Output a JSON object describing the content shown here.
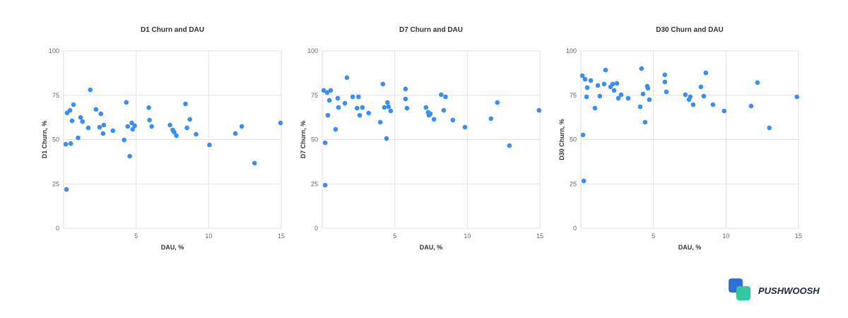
{
  "chart_data": [
    {
      "type": "scatter",
      "title": "D1 Churn and DAU",
      "x_label": "DAU, %",
      "y_label": "D1 Churn, %",
      "color": "#3a8ef2",
      "xlim": [
        0,
        15
      ],
      "xticks": [
        5,
        10,
        15
      ],
      "ylim": [
        0,
        100
      ],
      "yticks": [
        0,
        25,
        50,
        75,
        100
      ],
      "grid": true,
      "x": [
        0.15,
        0.2,
        0.24,
        0.44,
        0.49,
        0.58,
        0.68,
        1.0,
        1.17,
        1.3,
        1.7,
        1.84,
        2.23,
        2.48,
        2.57,
        2.77,
        2.72,
        3.4,
        4.17,
        4.32,
        4.42,
        4.56,
        4.7,
        4.76,
        4.9,
        5.87,
        5.92,
        6.07,
        7.33,
        7.52,
        7.62,
        7.77,
        8.4,
        8.5,
        8.7,
        9.13,
        10.05,
        11.84,
        12.28,
        13.16,
        14.95
      ],
      "values": [
        47.4,
        21.9,
        65,
        66.5,
        47.8,
        60.6,
        69.7,
        51,
        62.5,
        60.2,
        56.6,
        78,
        67,
        57,
        64.5,
        58.2,
        53.4,
        55,
        49.8,
        71,
        57.4,
        40.6,
        59.4,
        55.8,
        57.8,
        68,
        61,
        57.4,
        58.2,
        55.4,
        54.2,
        52.2,
        70.1,
        56.6,
        61.4,
        53,
        47,
        53.4,
        57.4,
        36.7,
        59.4
      ]
    },
    {
      "type": "scatter",
      "title": "D7 Churn and DAU",
      "x_label": "DAU, %",
      "y_label": "D7 Churn, %",
      "color": "#3a8ef2",
      "xlim": [
        0,
        15
      ],
      "xticks": [
        5,
        10,
        15
      ],
      "ylim": [
        0,
        100
      ],
      "yticks": [
        0,
        25,
        50,
        75,
        100
      ],
      "grid": true,
      "x": [
        0.1,
        0.2,
        0.2,
        0.34,
        0.39,
        0.49,
        0.58,
        0.92,
        1.12,
        1.07,
        1.56,
        1.7,
        2.1,
        2.4,
        2.5,
        2.58,
        2.77,
        3.2,
        4.0,
        4.18,
        4.28,
        4.43,
        4.5,
        4.57,
        4.72,
        5.74,
        5.74,
        5.84,
        7.15,
        7.3,
        7.35,
        7.45,
        7.7,
        8.2,
        8.37,
        8.5,
        9.0,
        9.83,
        11.63,
        12.07,
        12.9,
        14.94
      ],
      "values": [
        77.7,
        48.2,
        24.3,
        76.5,
        63.7,
        72.1,
        77.7,
        55.8,
        68.1,
        73.3,
        70.5,
        84.9,
        74.1,
        67.7,
        74.1,
        63.7,
        68.1,
        64.9,
        59.8,
        81.3,
        68.1,
        50.6,
        70.9,
        68.5,
        66.1,
        78.5,
        72.9,
        67.7,
        68.1,
        65.3,
        63.7,
        64.5,
        61.4,
        75.3,
        66.5,
        74.1,
        61,
        57,
        61.8,
        70.9,
        46.6,
        66.5
      ]
    },
    {
      "type": "scatter",
      "title": "D30 Churn and DAU",
      "x_label": "DAU, %",
      "y_label": "D30 Churn, %",
      "color": "#3a8ef2",
      "xlim": [
        0,
        15
      ],
      "xticks": [
        5,
        10,
        15
      ],
      "ylim": [
        0,
        100
      ],
      "yticks": [
        0,
        25,
        50,
        75,
        100
      ],
      "grid": true,
      "x": [
        0.1,
        0.15,
        0.2,
        0.29,
        0.39,
        0.44,
        0.68,
        0.97,
        1.17,
        1.31,
        1.6,
        1.7,
        2.04,
        2.19,
        2.29,
        2.48,
        2.58,
        2.77,
        3.26,
        4.09,
        4.18,
        4.28,
        4.43,
        4.57,
        4.62,
        4.72,
        5.79,
        5.79,
        5.89,
        7.2,
        7.45,
        7.54,
        7.74,
        8.27,
        8.47,
        8.61,
        9.1,
        9.88,
        11.73,
        12.17,
        12.99,
        14.89
      ],
      "values": [
        86,
        52.6,
        26.7,
        84,
        74.1,
        79.3,
        83.3,
        67.7,
        80.5,
        74.5,
        81.3,
        89.2,
        79.7,
        81.3,
        77.7,
        81.7,
        73.3,
        75.3,
        73.3,
        68.5,
        90,
        75.7,
        59.8,
        80.1,
        78.9,
        72.5,
        86.5,
        82.5,
        76.9,
        75.3,
        72.5,
        74.1,
        69.7,
        79.7,
        74.5,
        87.6,
        69.7,
        66.1,
        68.9,
        82.1,
        56.6,
        74.1
      ]
    }
  ],
  "logo": "PUSHWOOSH"
}
